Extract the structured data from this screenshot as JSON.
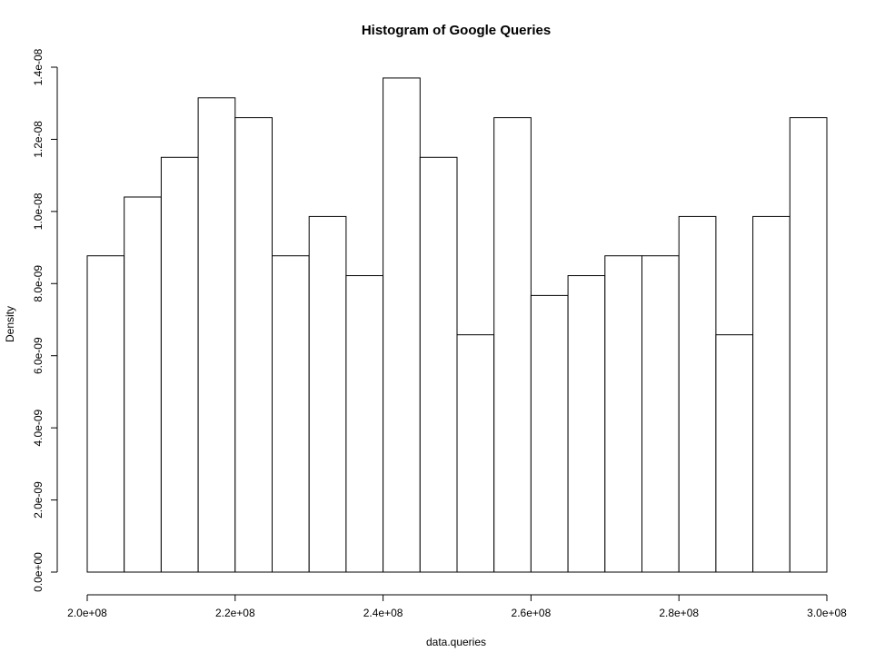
{
  "chart_data": {
    "type": "bar",
    "title": "Histogram of Google Queries",
    "xlabel": "data.queries",
    "ylabel": "Density",
    "xlim": [
      200000000,
      300000000
    ],
    "ylim": [
      0,
      1.4e-08
    ],
    "grid": false,
    "x_ticks": [
      {
        "value": 200000000,
        "label": "2.0e+08"
      },
      {
        "value": 220000000,
        "label": "2.2e+08"
      },
      {
        "value": 240000000,
        "label": "2.4e+08"
      },
      {
        "value": 260000000,
        "label": "2.6e+08"
      },
      {
        "value": 280000000,
        "label": "2.8e+08"
      },
      {
        "value": 300000000,
        "label": "3.0e+08"
      }
    ],
    "y_ticks": [
      {
        "value": 0,
        "label": "0.0e+00"
      },
      {
        "value": 2e-09,
        "label": "2.0e-09"
      },
      {
        "value": 4e-09,
        "label": "4.0e-09"
      },
      {
        "value": 6e-09,
        "label": "6.0e-09"
      },
      {
        "value": 8e-09,
        "label": "8.0e-09"
      },
      {
        "value": 1e-08,
        "label": "1.0e-08"
      },
      {
        "value": 1.2e-08,
        "label": "1.2e-08"
      },
      {
        "value": 1.4e-08,
        "label": "1.4e-08"
      }
    ],
    "bins": [
      {
        "start": 200000000,
        "end": 205000000,
        "density": 8.77e-09
      },
      {
        "start": 205000000,
        "end": 210000000,
        "density": 1.04e-08
      },
      {
        "start": 210000000,
        "end": 215000000,
        "density": 1.15e-08
      },
      {
        "start": 215000000,
        "end": 220000000,
        "density": 1.315e-08
      },
      {
        "start": 220000000,
        "end": 225000000,
        "density": 1.26e-08
      },
      {
        "start": 225000000,
        "end": 230000000,
        "density": 8.77e-09
      },
      {
        "start": 230000000,
        "end": 235000000,
        "density": 9.86e-09
      },
      {
        "start": 235000000,
        "end": 240000000,
        "density": 8.22e-09
      },
      {
        "start": 240000000,
        "end": 245000000,
        "density": 1.37e-08
      },
      {
        "start": 245000000,
        "end": 250000000,
        "density": 1.15e-08
      },
      {
        "start": 250000000,
        "end": 255000000,
        "density": 6.58e-09
      },
      {
        "start": 255000000,
        "end": 260000000,
        "density": 1.26e-08
      },
      {
        "start": 260000000,
        "end": 265000000,
        "density": 7.67e-09
      },
      {
        "start": 265000000,
        "end": 270000000,
        "density": 8.22e-09
      },
      {
        "start": 270000000,
        "end": 275000000,
        "density": 8.77e-09
      },
      {
        "start": 275000000,
        "end": 280000000,
        "density": 8.77e-09
      },
      {
        "start": 280000000,
        "end": 285000000,
        "density": 9.86e-09
      },
      {
        "start": 285000000,
        "end": 290000000,
        "density": 6.58e-09
      },
      {
        "start": 290000000,
        "end": 295000000,
        "density": 9.86e-09
      },
      {
        "start": 295000000,
        "end": 300000000,
        "density": 1.26e-08
      }
    ]
  }
}
